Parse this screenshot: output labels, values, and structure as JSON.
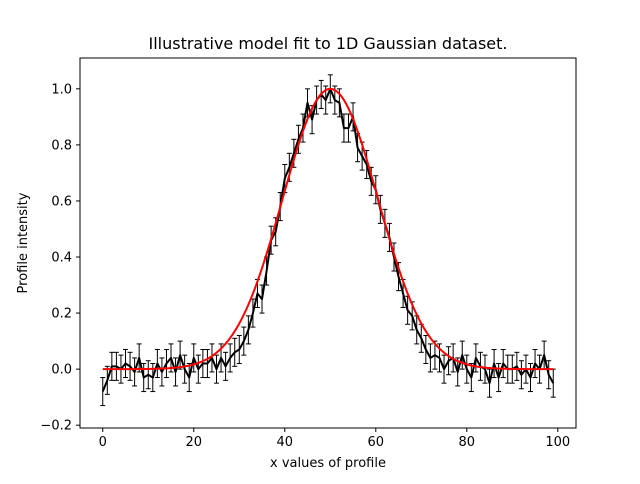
{
  "chart_data": {
    "type": "line",
    "title": "Illustrative model fit to 1D Gaussian dataset.",
    "xlabel": "x values of profile",
    "ylabel": "Profile intensity",
    "xlim": [
      -5,
      104
    ],
    "ylim": [
      -0.21,
      1.11
    ],
    "xticks": [
      0,
      20,
      40,
      60,
      80,
      100
    ],
    "yticks": [
      -0.2,
      0.0,
      0.2,
      0.4,
      0.6,
      0.8,
      1.0
    ],
    "xtick_labels": [
      "0",
      "20",
      "40",
      "60",
      "80",
      "100"
    ],
    "ytick_labels": [
      "−0.2",
      "0.0",
      "0.2",
      "0.4",
      "0.6",
      "0.8",
      "1.0"
    ],
    "grid": false,
    "legend": "none",
    "series": [
      {
        "kind": "data-with-errorbars",
        "color": "#000000",
        "x": [
          0,
          1,
          2,
          3,
          4,
          5,
          6,
          7,
          8,
          9,
          10,
          11,
          12,
          13,
          14,
          15,
          16,
          17,
          18,
          19,
          20,
          21,
          22,
          23,
          24,
          25,
          26,
          27,
          28,
          29,
          30,
          31,
          32,
          33,
          34,
          35,
          36,
          37,
          38,
          39,
          40,
          41,
          42,
          43,
          44,
          45,
          46,
          47,
          48,
          49,
          50,
          51,
          52,
          53,
          54,
          55,
          56,
          57,
          58,
          59,
          60,
          61,
          62,
          63,
          64,
          65,
          66,
          67,
          68,
          69,
          70,
          71,
          72,
          73,
          74,
          75,
          76,
          77,
          78,
          79,
          80,
          81,
          82,
          83,
          84,
          85,
          86,
          87,
          88,
          89,
          90,
          91,
          92,
          93,
          94,
          95,
          96,
          97,
          98,
          99
        ],
        "y": [
          -0.08,
          -0.04,
          0.01,
          0.01,
          0.0,
          0.02,
          0.01,
          -0.01,
          0.04,
          -0.03,
          -0.02,
          -0.03,
          0.02,
          -0.01,
          0.02,
          0.04,
          -0.01,
          0.05,
          0.0,
          -0.03,
          0.04,
          0.0,
          0.02,
          0.02,
          0.04,
          0.0,
          0.04,
          0.01,
          0.04,
          0.06,
          0.07,
          0.1,
          0.14,
          0.2,
          0.27,
          0.25,
          0.35,
          0.46,
          0.49,
          0.58,
          0.68,
          0.72,
          0.77,
          0.82,
          0.86,
          0.95,
          0.89,
          0.96,
          0.98,
          0.96,
          1.0,
          0.96,
          0.95,
          0.86,
          0.86,
          0.9,
          0.79,
          0.76,
          0.73,
          0.67,
          0.64,
          0.57,
          0.52,
          0.47,
          0.4,
          0.33,
          0.27,
          0.21,
          0.19,
          0.14,
          0.11,
          0.07,
          0.04,
          0.05,
          0.04,
          0.0,
          0.03,
          0.04,
          -0.01,
          0.05,
          0.0,
          -0.03,
          0.04,
          0.01,
          0.0,
          -0.05,
          0.02,
          -0.03,
          0.02,
          0.0,
          0.0,
          0.01,
          -0.02,
          0.0,
          -0.03,
          0.02,
          0.0,
          0.05,
          -0.02,
          -0.05
        ],
        "yerr": 0.05
      },
      {
        "kind": "model-fit",
        "color": "#ff0000",
        "model": "gaussian",
        "amplitude": 1.0,
        "center": 50,
        "sigma": 10.5
      }
    ]
  }
}
